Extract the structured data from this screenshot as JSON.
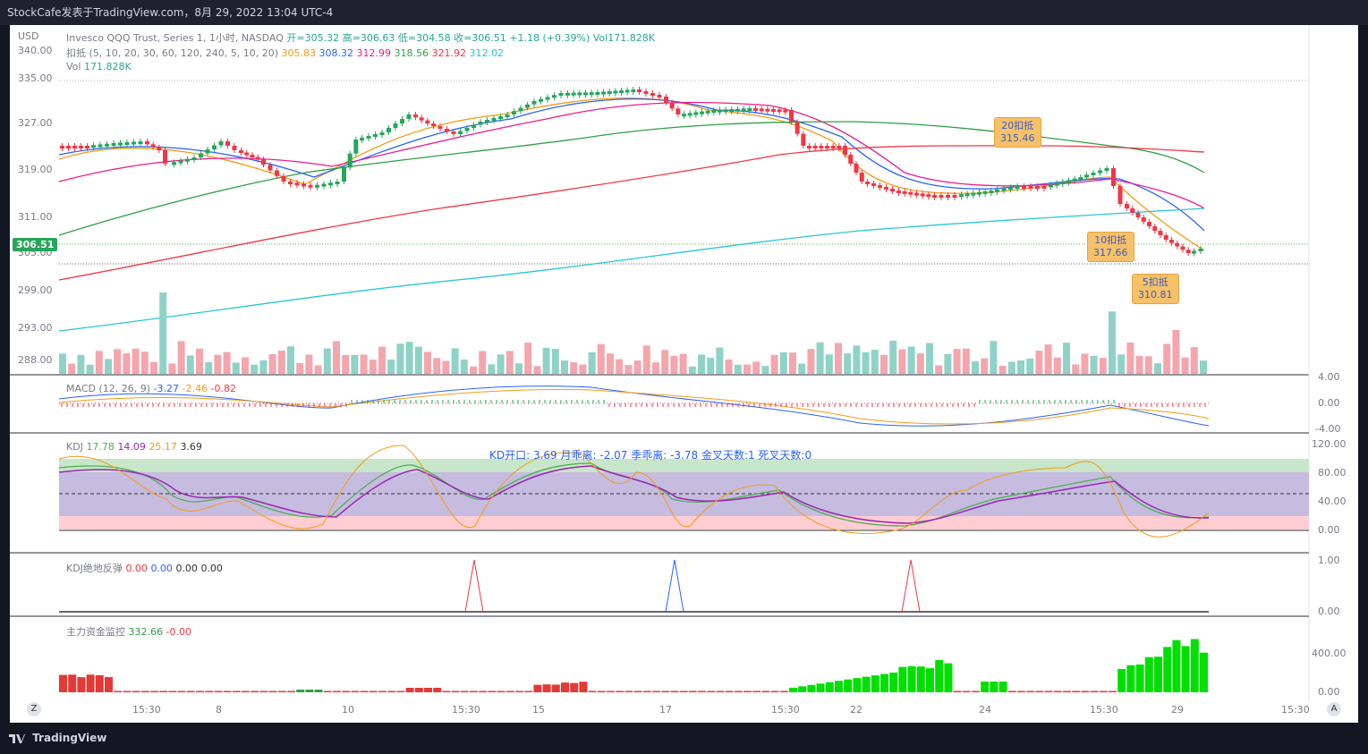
{
  "window_title": "StockCafe发表于TradingView.com，8月 29, 2022 13:04 UTC-4",
  "brand": "TradingView",
  "currency": "USD",
  "main_pane": {
    "legend_line1": {
      "symbol": "Invesco QQQ Trust, Series 1, 1小时, NASDAQ",
      "open": "开=305.32",
      "high": "高=306.63",
      "low": "低=304.58",
      "close": "收=306.51",
      "change": "+1.18 (+0.39%)",
      "vol": "Vol171.828K"
    },
    "legend_line2": {
      "name": "扣抵 (5, 10, 20, 30, 60, 120, 240, 5, 10, 20)",
      "v1": "305.83",
      "c1": "#f39c12",
      "v2": "308.32",
      "c2": "#2962ff",
      "v3": "312.99",
      "c3": "#e91e8c",
      "v4": "318.56",
      "c4": "#2ea043",
      "v5": "321.92",
      "c5": "#f23645",
      "v6": "312.02",
      "c6": "#26c6da"
    },
    "legend_line3": {
      "name": "Vol",
      "value": "171.828K"
    },
    "price_ticks": [
      "340.00",
      "335.00",
      "327.00",
      "319.00",
      "311.00",
      "305.00",
      "299.00",
      "293.00",
      "288.00"
    ],
    "last_price": "306.51",
    "callouts": [
      {
        "title": "20扣抵",
        "value": "315.46"
      },
      {
        "title": "10扣抵",
        "value": "317.66"
      },
      {
        "title": "5扣抵",
        "value": "310.81"
      }
    ]
  },
  "macd_pane": {
    "name": "MACD (12, 26, 9)",
    "v1": "-3.27",
    "v2": "-2.46",
    "v3": "-0.82",
    "ticks": [
      "4.00",
      "0.00",
      "-4.00"
    ]
  },
  "kdj_pane": {
    "name": "KDJ",
    "k": "17.78",
    "d": "14.09",
    "j": "25.17",
    "extra": "3.69",
    "banner": "KD开口: 3.69   月乖离: -2.07   季乖离: -3.78   金叉天数:1   死叉天数:0",
    "ticks": [
      "120.00",
      "80.00",
      "40.00",
      "0.00"
    ]
  },
  "kdj_rebound_pane": {
    "name": "KDJ绝地反弹",
    "v1": "0.00",
    "v2": "0.00",
    "v3": "0.00",
    "v4": "0.00",
    "ticks": [
      "1.00",
      "0.00"
    ]
  },
  "fund_pane": {
    "name": "主力资金监控",
    "v1": "332.66",
    "v2": "-0.00",
    "ticks": [
      "400.00",
      "0.00"
    ]
  },
  "time_axis": [
    "15:30",
    "8",
    "10",
    "15:30",
    "15",
    "17",
    "15:30",
    "22",
    "24",
    "15:30",
    "29",
    "15:30"
  ],
  "axis_buttons": {
    "left": "Z",
    "right": "A"
  }
}
